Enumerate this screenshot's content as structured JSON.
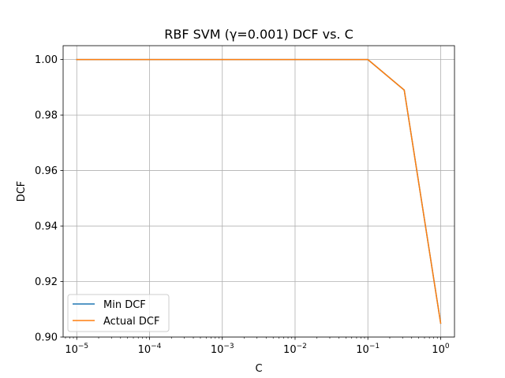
{
  "chart_data": {
    "type": "line",
    "title": "RBF SVM (γ=0.001) DCF vs. C",
    "xlabel": "C",
    "ylabel": "DCF",
    "xscale": "log",
    "xlim": [
      6.5e-06,
      1.55
    ],
    "ylim": [
      0.9,
      1.005
    ],
    "x": [
      1e-05,
      0.0001,
      0.001,
      0.01,
      0.1,
      0.316,
      1.0
    ],
    "x_tick_values": [
      1e-05,
      0.0001,
      0.001,
      0.01,
      0.1,
      1.0
    ],
    "x_tick_labels": [
      {
        "base": "10",
        "exp": "−5"
      },
      {
        "base": "10",
        "exp": "−4"
      },
      {
        "base": "10",
        "exp": "−3"
      },
      {
        "base": "10",
        "exp": "−2"
      },
      {
        "base": "10",
        "exp": "−1"
      },
      {
        "base": "10",
        "exp": "0"
      }
    ],
    "y_ticks": [
      0.9,
      0.92,
      0.94,
      0.96,
      0.98,
      1.0
    ],
    "y_tick_labels": [
      "0.90",
      "0.92",
      "0.94",
      "0.96",
      "0.98",
      "1.00"
    ],
    "grid": true,
    "legend_position": "lower-left",
    "series": [
      {
        "name": "Min DCF",
        "color": "#1f77b4",
        "values": [
          1.0,
          1.0,
          1.0,
          1.0,
          1.0,
          0.989,
          0.905
        ]
      },
      {
        "name": "Actual DCF",
        "color": "#ff7f0e",
        "values": [
          1.0,
          1.0,
          1.0,
          1.0,
          1.0,
          0.989,
          0.905
        ]
      }
    ]
  }
}
